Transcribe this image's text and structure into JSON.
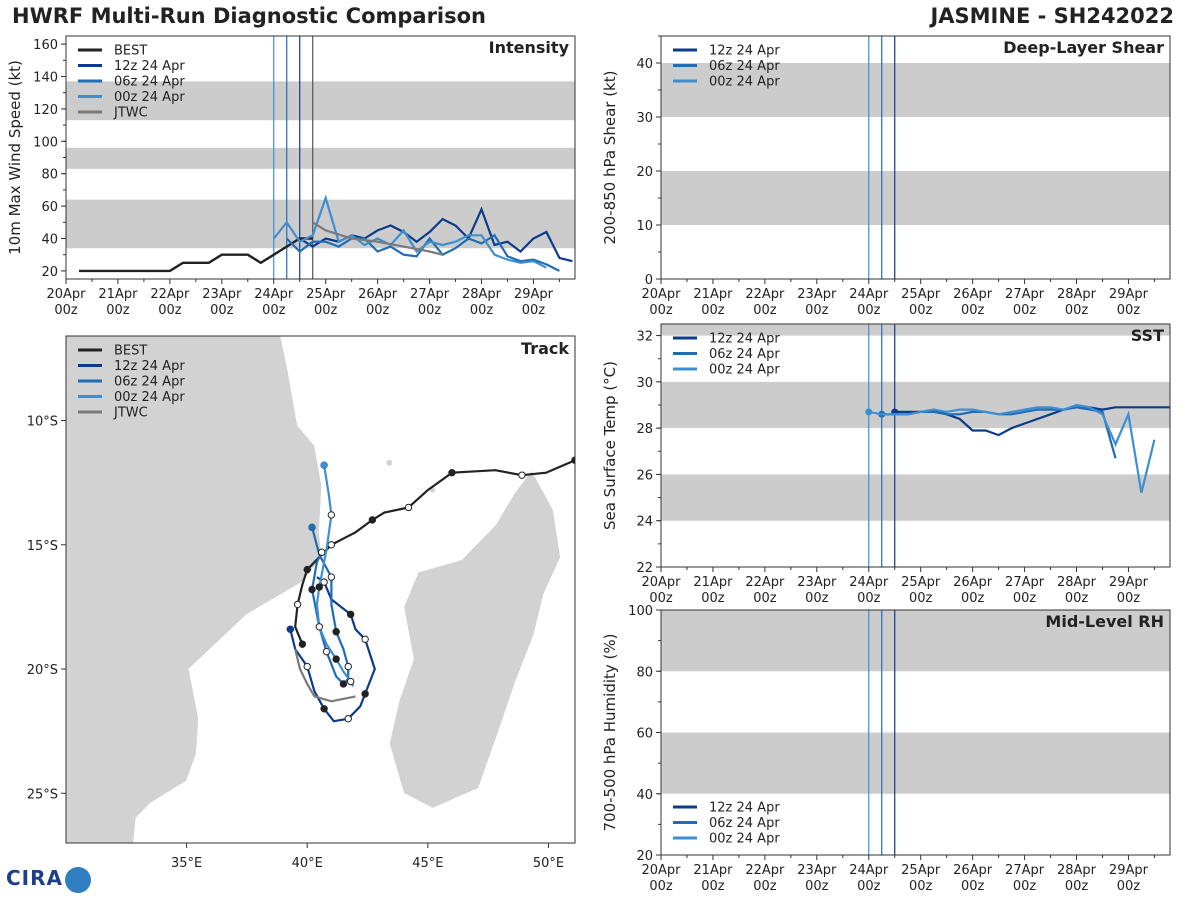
{
  "header": {
    "title": "HWRF Multi-Run Diagnostic Comparison",
    "storm": "JASMINE - SH242022"
  },
  "logo": {
    "text": "CIRA"
  },
  "colors": {
    "best": "#222222",
    "run12": "#0b3c8c",
    "run06": "#1f6db5",
    "run00": "#3d8fd1",
    "jtwc": "#7a7a7a",
    "band": "#cccccc",
    "land": "#d2d2d2"
  },
  "chart_data": [
    {
      "id": "intensity",
      "type": "line",
      "title": "Intensity",
      "ylabel": "10m Max Wind Speed (kt)",
      "ylim": [
        15,
        165
      ],
      "yticks": [
        20,
        40,
        60,
        80,
        100,
        120,
        140,
        160
      ],
      "xlim": [
        0,
        9.8
      ],
      "xtick_labels": [
        [
          "20Apr",
          "00z"
        ],
        [
          "21Apr",
          "00z"
        ],
        [
          "22Apr",
          "00z"
        ],
        [
          "23Apr",
          "00z"
        ],
        [
          "24Apr",
          "00z"
        ],
        [
          "25Apr",
          "00z"
        ],
        [
          "26Apr",
          "00z"
        ],
        [
          "27Apr",
          "00z"
        ],
        [
          "28Apr",
          "00z"
        ],
        [
          "29Apr",
          "00z"
        ]
      ],
      "bands": [
        [
          34,
          64
        ],
        [
          83,
          96
        ],
        [
          113,
          137
        ]
      ],
      "vlines": [
        4.0,
        4.25,
        4.5,
        4.75
      ],
      "legend": [
        "BEST",
        "12z 24 Apr",
        "06z 24 Apr",
        "00z 24 Apr",
        "JTWC"
      ],
      "series": [
        {
          "name": "BEST",
          "x": [
            0.25,
            0.5,
            0.75,
            1,
            1.25,
            1.5,
            1.75,
            2,
            2.25,
            2.5,
            2.75,
            3,
            3.25,
            3.5,
            3.75,
            4,
            4.25,
            4.5,
            4.75
          ],
          "y": [
            20,
            20,
            20,
            20,
            20,
            20,
            20,
            20,
            25,
            25,
            25,
            30,
            30,
            30,
            25,
            30,
            35,
            40,
            40
          ]
        },
        {
          "name": "12z 24 Apr",
          "x": [
            4.5,
            4.75,
            5,
            5.25,
            5.5,
            5.75,
            6,
            6.25,
            6.5,
            6.75,
            7,
            7.25,
            7.5,
            7.75,
            8,
            8.25,
            8.5,
            8.75,
            9,
            9.25,
            9.5,
            9.75
          ],
          "y": [
            40,
            35,
            40,
            38,
            42,
            40,
            45,
            48,
            44,
            38,
            44,
            52,
            48,
            40,
            58,
            36,
            38,
            32,
            40,
            44,
            28,
            26
          ]
        },
        {
          "name": "06z 24 Apr",
          "x": [
            4.25,
            4.5,
            4.75,
            5,
            5.25,
            5.5,
            5.75,
            6,
            6.25,
            6.5,
            6.75,
            7,
            7.25,
            7.5,
            7.75,
            8,
            8.25,
            8.5,
            8.75,
            9,
            9.25,
            9.5
          ],
          "y": [
            40,
            32,
            38,
            38,
            35,
            40,
            40,
            32,
            35,
            30,
            29,
            40,
            30,
            34,
            40,
            37,
            42,
            29,
            26,
            27,
            24,
            20
          ]
        },
        {
          "name": "00z 24 Apr",
          "x": [
            4,
            4.25,
            4.5,
            4.75,
            5,
            5.25,
            5.5,
            5.75,
            6,
            6.25,
            6.5,
            6.75,
            7,
            7.25,
            7.5,
            7.75,
            8,
            8.25,
            8.5,
            8.75,
            9,
            9.25
          ],
          "y": [
            40,
            50,
            38,
            42,
            65,
            38,
            42,
            36,
            40,
            36,
            45,
            32,
            38,
            36,
            38,
            42,
            42,
            30,
            27,
            25,
            26,
            22
          ]
        },
        {
          "name": "JTWC",
          "x": [
            4.75,
            5.0,
            5.5,
            6.0,
            6.5,
            7.0,
            7.25
          ],
          "y": [
            50,
            45,
            40,
            38,
            35,
            32,
            30
          ]
        }
      ]
    },
    {
      "id": "shear",
      "type": "line",
      "title": "Deep-Layer Shear",
      "ylabel": "200-850 hPa Shear (kt)",
      "ylim": [
        0,
        45
      ],
      "yticks": [
        0,
        10,
        20,
        30,
        40
      ],
      "xlim": [
        0,
        9.8
      ],
      "xtick_labels": [
        [
          "20Apr",
          "00z"
        ],
        [
          "21Apr",
          "00z"
        ],
        [
          "22Apr",
          "00z"
        ],
        [
          "23Apr",
          "00z"
        ],
        [
          "24Apr",
          "00z"
        ],
        [
          "25Apr",
          "00z"
        ],
        [
          "26Apr",
          "00z"
        ],
        [
          "27Apr",
          "00z"
        ],
        [
          "28Apr",
          "00z"
        ],
        [
          "29Apr",
          "00z"
        ]
      ],
      "bands": [
        [
          10,
          20
        ],
        [
          30,
          40
        ]
      ],
      "vlines": [
        4.0,
        4.25,
        4.5
      ],
      "legend": [
        "12z 24 Apr",
        "06z 24 Apr",
        "00z 24 Apr"
      ],
      "series": []
    },
    {
      "id": "sst",
      "type": "line",
      "title": "SST",
      "ylabel": "Sea Surface Temp (°C)",
      "ylim": [
        22,
        32.5
      ],
      "yticks": [
        22,
        24,
        26,
        28,
        30,
        32
      ],
      "xlim": [
        0,
        9.8
      ],
      "xtick_labels": [
        [
          "20Apr",
          "00z"
        ],
        [
          "21Apr",
          "00z"
        ],
        [
          "22Apr",
          "00z"
        ],
        [
          "23Apr",
          "00z"
        ],
        [
          "24Apr",
          "00z"
        ],
        [
          "25Apr",
          "00z"
        ],
        [
          "26Apr",
          "00z"
        ],
        [
          "27Apr",
          "00z"
        ],
        [
          "28Apr",
          "00z"
        ],
        [
          "29Apr",
          "00z"
        ]
      ],
      "bands": [
        [
          24,
          26
        ],
        [
          28,
          30
        ],
        [
          32,
          34
        ]
      ],
      "vlines": [
        4.0,
        4.25,
        4.5
      ],
      "legend": [
        "12z 24 Apr",
        "06z 24 Apr",
        "00z 24 Apr"
      ],
      "series": [
        {
          "name": "12z 24 Apr",
          "x": [
            4.5,
            4.75,
            5,
            5.25,
            5.5,
            5.75,
            6,
            6.25,
            6.5,
            6.75,
            7,
            7.25,
            7.5,
            7.75,
            8,
            8.25,
            8.5,
            8.75,
            9,
            9.25,
            9.5,
            9.75,
            10
          ],
          "y": [
            28.7,
            28.7,
            28.7,
            28.8,
            28.6,
            28.4,
            27.9,
            27.9,
            27.7,
            28.0,
            28.2,
            28.4,
            28.6,
            28.8,
            28.9,
            28.9,
            28.8,
            28.9,
            28.9,
            28.9,
            28.9,
            28.9,
            28.9
          ]
        },
        {
          "name": "06z 24 Apr",
          "x": [
            4.25,
            4.5,
            4.75,
            5,
            5.25,
            5.5,
            5.75,
            6,
            6.25,
            6.5,
            6.75,
            7,
            7.25,
            7.5,
            7.75,
            8,
            8.25,
            8.5,
            8.75
          ],
          "y": [
            28.6,
            28.6,
            28.6,
            28.7,
            28.7,
            28.6,
            28.6,
            28.7,
            28.7,
            28.6,
            28.6,
            28.7,
            28.8,
            28.8,
            28.8,
            28.9,
            28.8,
            28.7,
            26.7
          ]
        },
        {
          "name": "00z 24 Apr",
          "x": [
            4,
            4.25,
            4.5,
            4.75,
            5,
            5.25,
            5.5,
            5.75,
            6,
            6.25,
            6.5,
            6.75,
            7,
            7.25,
            7.5,
            7.75,
            8,
            8.25,
            8.5,
            8.75,
            9,
            9.25,
            9.5
          ],
          "y": [
            28.7,
            28.6,
            28.6,
            28.6,
            28.7,
            28.8,
            28.7,
            28.8,
            28.8,
            28.7,
            28.6,
            28.7,
            28.8,
            28.9,
            28.9,
            28.8,
            29.0,
            28.9,
            28.6,
            27.3,
            28.6,
            25.2,
            27.5
          ]
        }
      ]
    },
    {
      "id": "rh",
      "type": "line",
      "title": "Mid-Level RH",
      "ylabel": "700-500 hPa Humidity (%)",
      "ylim": [
        20,
        100
      ],
      "yticks": [
        20,
        40,
        60,
        80,
        100
      ],
      "xlim": [
        0,
        9.8
      ],
      "xtick_labels": [
        [
          "20Apr",
          "00z"
        ],
        [
          "21Apr",
          "00z"
        ],
        [
          "22Apr",
          "00z"
        ],
        [
          "23Apr",
          "00z"
        ],
        [
          "24Apr",
          "00z"
        ],
        [
          "25Apr",
          "00z"
        ],
        [
          "26Apr",
          "00z"
        ],
        [
          "27Apr",
          "00z"
        ],
        [
          "28Apr",
          "00z"
        ],
        [
          "29Apr",
          "00z"
        ]
      ],
      "bands": [
        [
          40,
          60
        ],
        [
          80,
          100
        ]
      ],
      "vlines": [
        4.0,
        4.25,
        4.5
      ],
      "legend": [
        "12z 24 Apr",
        "06z 24 Apr",
        "00z 24 Apr"
      ],
      "series": []
    },
    {
      "id": "track",
      "type": "map",
      "title": "Track",
      "lon_range": [
        30,
        51.1
      ],
      "lat_range": [
        -27,
        -6.6
      ],
      "xticks": [
        {
          "v": 35,
          "label": "35°E"
        },
        {
          "v": 40,
          "label": "40°E"
        },
        {
          "v": 45,
          "label": "45°E"
        },
        {
          "v": 50,
          "label": "50°E"
        }
      ],
      "yticks": [
        {
          "v": -10,
          "label": "10°S"
        },
        {
          "v": -15,
          "label": "15°S"
        },
        {
          "v": -20,
          "label": "20°S"
        },
        {
          "v": -25,
          "label": "25°S"
        }
      ],
      "legend": [
        "BEST",
        "12z 24 Apr",
        "06z 24 Apr",
        "00z 24 Apr",
        "JTWC"
      ],
      "series": [
        {
          "name": "BEST",
          "lon": [
            51.1,
            49.9,
            48.9,
            47.8,
            46.0,
            45.0,
            44.2,
            43.2,
            42.7,
            42.0,
            41.0,
            40.5,
            40.0,
            39.8,
            39.6,
            39.5,
            39.8
          ],
          "lat": [
            -11.6,
            -12.1,
            -12.2,
            -12.0,
            -12.1,
            -12.8,
            -13.5,
            -13.7,
            -14.0,
            -14.5,
            -15.0,
            -15.5,
            -16.0,
            -16.6,
            -17.4,
            -18.3,
            -19.0
          ]
        },
        {
          "name": "12z 24 Apr",
          "lon": [
            39.3,
            39.5,
            40.0,
            40.3,
            40.7,
            41.1,
            41.7,
            42.2,
            42.4,
            42.8,
            42.4,
            42.0,
            41.8,
            41.0,
            40.7,
            40.4
          ],
          "lat": [
            -18.4,
            -19.2,
            -19.9,
            -20.9,
            -21.6,
            -22.1,
            -22.0,
            -21.5,
            -21.0,
            -20.0,
            -18.8,
            -18.4,
            -17.8,
            -17.2,
            -16.5,
            -16.3
          ]
        },
        {
          "name": "06z 24 Apr",
          "lon": [
            40.2,
            40.5,
            41.0,
            41.0,
            41.2,
            41.5,
            41.7,
            41.7,
            41.5,
            41.2,
            40.8,
            40.5,
            40.2,
            40.4,
            40.6
          ],
          "lat": [
            -14.3,
            -15.4,
            -16.3,
            -17.4,
            -18.5,
            -19.2,
            -19.9,
            -20.4,
            -20.6,
            -20.3,
            -19.3,
            -18.3,
            -16.8,
            -15.7,
            -15.3
          ]
        },
        {
          "name": "00z 24 Apr",
          "lon": [
            40.7,
            40.9,
            41.0,
            40.8,
            40.5,
            40.4,
            40.5,
            40.8,
            41.2,
            41.5,
            41.8,
            41.9
          ],
          "lat": [
            -11.8,
            -13.0,
            -13.8,
            -15.2,
            -16.7,
            -17.4,
            -18.3,
            -19.0,
            -19.6,
            -20.1,
            -20.5,
            -20.7
          ]
        },
        {
          "name": "JTWC",
          "lon": [
            39.5,
            39.7,
            40.0,
            40.3,
            41.0,
            42.0
          ],
          "lat": [
            -19.2,
            -20.0,
            -20.6,
            -21.1,
            -21.3,
            -21.1
          ]
        }
      ]
    }
  ]
}
